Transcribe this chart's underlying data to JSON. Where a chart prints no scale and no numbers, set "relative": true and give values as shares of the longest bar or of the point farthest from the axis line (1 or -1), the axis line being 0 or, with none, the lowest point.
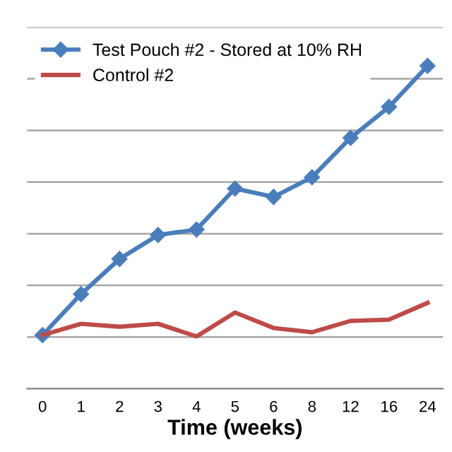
{
  "chart_data": {
    "type": "line",
    "relative": true,
    "xlabel": "Time (weeks)",
    "categories": [
      "0",
      "1",
      "2",
      "3",
      "4",
      "5",
      "6",
      "8",
      "12",
      "16",
      "24"
    ],
    "series": [
      {
        "name": "Test Pouch #2 - Stored at 10% RH",
        "color": "#4a7ebb",
        "marker": "diamond",
        "values": [
          0.166,
          0.293,
          0.402,
          0.476,
          0.493,
          0.62,
          0.594,
          0.655,
          0.777,
          0.873,
          1.0
        ]
      },
      {
        "name": "Control #2",
        "color": "#be4b48",
        "marker": "none",
        "values": [
          0.166,
          0.201,
          0.192,
          0.201,
          0.162,
          0.236,
          0.188,
          0.175,
          0.21,
          0.214,
          0.266
        ]
      }
    ],
    "grid": "y",
    "legend": "top left",
    "line_style": "solid"
  }
}
